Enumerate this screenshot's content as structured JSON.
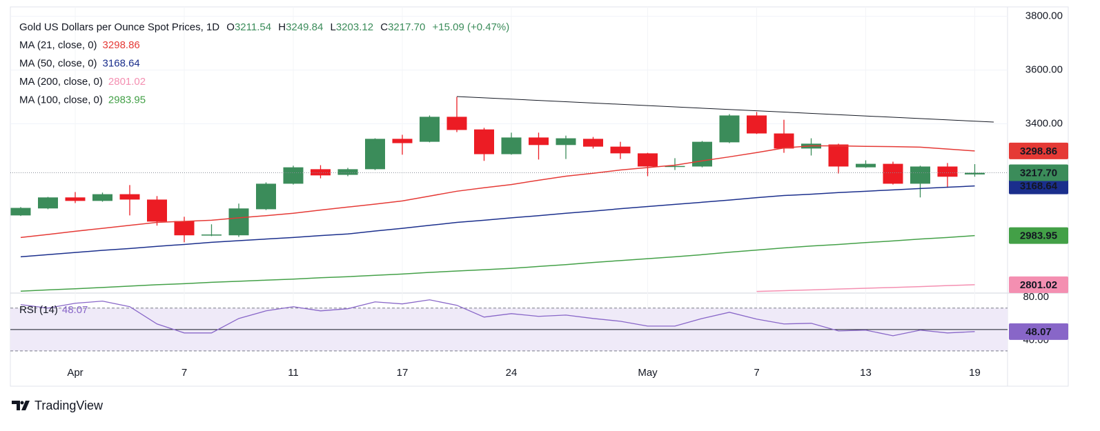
{
  "chart_data": {
    "type": "candlestick",
    "title": "Gold US Dollars per Ounce Spot Prices, 1D",
    "header_keys": [
      "O",
      "H",
      "L",
      "C"
    ],
    "change_label": "+15.09 (+0.47%)",
    "categories": [
      null,
      null,
      "Apr",
      null,
      null,
      null,
      "7",
      null,
      null,
      null,
      "11",
      null,
      null,
      null,
      "17",
      null,
      null,
      null,
      "24",
      null,
      null,
      null,
      null,
      "May",
      null,
      null,
      null,
      "7",
      null,
      null,
      null,
      "13",
      null,
      null,
      null,
      "19"
    ],
    "open": [
      3059,
      3085,
      3126,
      3113,
      3138,
      3118,
      3038,
      2984,
      2985,
      3082,
      3177,
      3231,
      3210,
      3231,
      3344,
      3333,
      3426,
      3379,
      3287,
      3349,
      3321,
      3344,
      3315,
      3290,
      3241,
      3241,
      3331,
      3431,
      3364,
      3308,
      3323,
      3238,
      3251,
      3177,
      3241,
      3211.54
    ],
    "high": [
      3090,
      3128,
      3146,
      3144,
      3172,
      3131,
      3054,
      3026,
      3103,
      3182,
      3244,
      3246,
      3236,
      3346,
      3359,
      3431,
      3500,
      3385,
      3367,
      3367,
      3356,
      3351,
      3333,
      3292,
      3272,
      3336,
      3436,
      3444,
      3415,
      3346,
      3326,
      3264,
      3259,
      3244,
      3254,
      3249.84
    ],
    "low": [
      3057,
      3082,
      3105,
      3110,
      3059,
      3021,
      2959,
      2982,
      2979,
      3079,
      3174,
      3197,
      3205,
      3228,
      3285,
      3331,
      3369,
      3262,
      3285,
      3267,
      3269,
      3308,
      3269,
      3205,
      3228,
      3238,
      3328,
      3362,
      3292,
      3282,
      3215,
      3236,
      3174,
      3126,
      3162,
      3203.12
    ],
    "close": [
      3087,
      3126,
      3113,
      3138,
      3118,
      3036,
      2985,
      2988,
      3085,
      3177,
      3238,
      3208,
      3231,
      3344,
      3328,
      3426,
      3377,
      3287,
      3349,
      3321,
      3346,
      3315,
      3290,
      3241,
      3243,
      3333,
      3431,
      3364,
      3308,
      3326,
      3241,
      3251,
      3177,
      3241,
      3203,
      3217.7
    ],
    "close_label": "3217.70",
    "up_color": "#3b8c5a",
    "down_color": "#ec1c24",
    "ylim": [
      2770,
      3835
    ],
    "yticks": [
      {
        "value": 3400,
        "label": "3400.00"
      },
      {
        "value": 3600,
        "label": "3600.00"
      },
      {
        "value": 3800,
        "label": "3800.00"
      }
    ],
    "overlays": [
      {
        "name": "MA (21, close, 0)",
        "color": "#e53935",
        "label_color": "#ffffff",
        "values": [
          2977,
          2988,
          3000,
          3011,
          3022,
          3033,
          3037,
          3041,
          3050,
          3058,
          3067,
          3079,
          3090,
          3101,
          3113,
          3131,
          3149,
          3162,
          3174,
          3190,
          3205,
          3216,
          3228,
          3237,
          3246,
          3262,
          3277,
          3293,
          3310,
          3318,
          3318,
          3316,
          3315,
          3313,
          3306,
          3298.86
        ]
      },
      {
        "name": "MA (50, close, 0)",
        "color": "#1a2e8c",
        "label_color": "#ffffff",
        "values": [
          2905,
          2913,
          2921,
          2929,
          2936,
          2944,
          2951,
          2959,
          2965,
          2971,
          2977,
          2984,
          2990,
          3001,
          3011,
          3022,
          3033,
          3041,
          3050,
          3058,
          3067,
          3075,
          3084,
          3092,
          3100,
          3108,
          3116,
          3125,
          3133,
          3138,
          3144,
          3149,
          3154,
          3159,
          3164,
          3168.64
        ]
      },
      {
        "name": "MA (200, close, 0)",
        "color": "#f48fb1",
        "label_color": "#131722",
        "values": [
          null,
          null,
          null,
          null,
          null,
          null,
          null,
          null,
          null,
          null,
          null,
          null,
          null,
          null,
          null,
          null,
          null,
          null,
          null,
          null,
          null,
          null,
          null,
          null,
          null,
          null,
          null,
          2776,
          2779,
          2782,
          2785,
          2788,
          2791,
          2794,
          2798,
          2801.02
        ]
      },
      {
        "name": "MA (100, close, 0)",
        "color": "#43a047",
        "label_color": "#ffffff",
        "values": [
          2777,
          2782,
          2786,
          2791,
          2796,
          2801,
          2805,
          2810,
          2814,
          2818,
          2822,
          2827,
          2831,
          2836,
          2841,
          2847,
          2852,
          2857,
          2862,
          2869,
          2876,
          2884,
          2891,
          2898,
          2905,
          2913,
          2922,
          2930,
          2938,
          2945,
          2951,
          2958,
          2964,
          2971,
          2977,
          2983.95
        ]
      }
    ],
    "rsi": {
      "name": "RSI (14)",
      "color": "#8866c8",
      "band_color": "#efeaf8",
      "values": [
        73.2,
        70.0,
        74.5,
        76.5,
        71.3,
        55.2,
        46.8,
        46.8,
        60.3,
        67.4,
        71.3,
        67.4,
        69.4,
        75.8,
        73.9,
        77.7,
        72.6,
        61.6,
        64.8,
        62.3,
        63.5,
        60.3,
        57.7,
        53.2,
        53.2,
        60.3,
        66.1,
        59.7,
        55.2,
        55.8,
        48.7,
        49.4,
        44.2,
        49.4,
        46.8,
        48.07
      ],
      "ylim": [
        28,
        84
      ],
      "yticks": [
        {
          "value": 40,
          "label": "40.00"
        },
        {
          "value": 80,
          "label": "80.00"
        }
      ],
      "band": [
        30,
        70
      ],
      "median": 50
    },
    "footer": "TradingView"
  }
}
